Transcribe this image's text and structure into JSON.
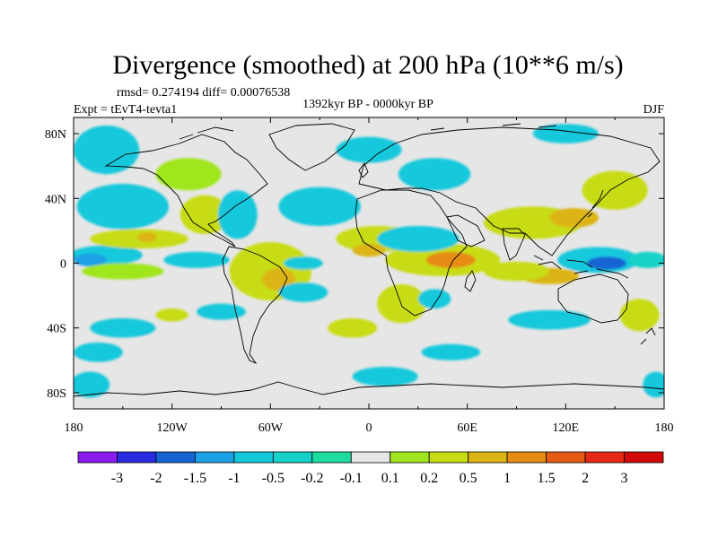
{
  "chart_data": {
    "type": "heatmap",
    "title": "Divergence (smoothed) at 200 hPa (10**6 m/s)",
    "stats": "rmsd= 0.274194 diff= 0.00076538",
    "period": "1392kyr BP - 0000kyr BP",
    "experiment": "Expt = tEvT4-tevta1",
    "season": "DJF",
    "x_range": [
      -180,
      180
    ],
    "y_range": [
      -90,
      90
    ],
    "x_ticks": [
      {
        "value": -180,
        "label": "180"
      },
      {
        "value": -120,
        "label": "120W"
      },
      {
        "value": -60,
        "label": "60W"
      },
      {
        "value": 0,
        "label": "0"
      },
      {
        "value": 60,
        "label": "60E"
      },
      {
        "value": 120,
        "label": "120E"
      },
      {
        "value": 180,
        "label": "180"
      }
    ],
    "y_ticks": [
      {
        "value": 80,
        "label": "80N"
      },
      {
        "value": 40,
        "label": "40N"
      },
      {
        "value": 0,
        "label": "0"
      },
      {
        "value": -40,
        "label": "40S"
      },
      {
        "value": -80,
        "label": "80S"
      }
    ],
    "colorbar": {
      "levels": [
        "-3",
        "-2",
        "-1.5",
        "-1",
        "-0.5",
        "-0.2",
        "-0.1",
        "0.1",
        "0.2",
        "0.5",
        "1",
        "1.5",
        "2",
        "3"
      ],
      "colors": [
        "#8a1cf0",
        "#2a2ae0",
        "#1464d2",
        "#1ea0e6",
        "#14c8dc",
        "#14d2c8",
        "#1edca0",
        "#e6e6e6",
        "#a0e61e",
        "#c8dc14",
        "#dcb414",
        "#e68c14",
        "#e65a14",
        "#e62814",
        "#d20a0a"
      ]
    },
    "regions": [
      {
        "class": 4,
        "lon": -160,
        "lat": 5,
        "rlon": 22,
        "rlat": 6
      },
      {
        "class": 3,
        "lon": -170,
        "lat": 2,
        "rlon": 10,
        "rlat": 4
      },
      {
        "class": 4,
        "lon": -105,
        "lat": 2,
        "rlon": 20,
        "rlat": 5
      },
      {
        "class": 9,
        "lon": -140,
        "lat": 15,
        "rlon": 30,
        "rlat": 6
      },
      {
        "class": 10,
        "lon": -135,
        "lat": 16,
        "rlon": 6,
        "rlat": 3
      },
      {
        "class": 8,
        "lon": -150,
        "lat": -5,
        "rlon": 25,
        "rlat": 5
      },
      {
        "class": 4,
        "lon": -150,
        "lat": 35,
        "rlon": 28,
        "rlat": 14
      },
      {
        "class": 4,
        "lon": -160,
        "lat": 70,
        "rlon": 20,
        "rlat": 15
      },
      {
        "class": 9,
        "lon": -100,
        "lat": 30,
        "rlon": 15,
        "rlat": 12
      },
      {
        "class": 4,
        "lon": -80,
        "lat": 30,
        "rlon": 12,
        "rlat": 15
      },
      {
        "class": 8,
        "lon": -110,
        "lat": 55,
        "rlon": 20,
        "rlat": 10
      },
      {
        "class": 9,
        "lon": -60,
        "lat": -5,
        "rlon": 25,
        "rlat": 18
      },
      {
        "class": 10,
        "lon": -55,
        "lat": -10,
        "rlon": 10,
        "rlat": 7
      },
      {
        "class": 9,
        "lon": -60,
        "lat": 5,
        "rlon": 18,
        "rlat": 6
      },
      {
        "class": 4,
        "lon": -40,
        "lat": -18,
        "rlon": 15,
        "rlat": 6
      },
      {
        "class": 4,
        "lon": -90,
        "lat": -30,
        "rlon": 15,
        "rlat": 5
      },
      {
        "class": 4,
        "lon": -150,
        "lat": -40,
        "rlon": 20,
        "rlat": 6
      },
      {
        "class": 9,
        "lon": -120,
        "lat": -32,
        "rlon": 10,
        "rlat": 4
      },
      {
        "class": 4,
        "lon": -165,
        "lat": -55,
        "rlon": 15,
        "rlat": 6
      },
      {
        "class": 4,
        "lon": -30,
        "lat": 35,
        "rlon": 25,
        "rlat": 12
      },
      {
        "class": 4,
        "lon": -40,
        "lat": 0,
        "rlon": 12,
        "rlat": 4
      },
      {
        "class": 9,
        "lon": 5,
        "lat": 15,
        "rlon": 25,
        "rlat": 8
      },
      {
        "class": 10,
        "lon": 0,
        "lat": 8,
        "rlon": 10,
        "rlat": 4
      },
      {
        "class": 9,
        "lon": 45,
        "lat": 2,
        "rlon": 35,
        "rlat": 10
      },
      {
        "class": 11,
        "lon": 50,
        "lat": 2,
        "rlon": 15,
        "rlat": 5
      },
      {
        "class": 4,
        "lon": 30,
        "lat": 15,
        "rlon": 25,
        "rlat": 8
      },
      {
        "class": 4,
        "lon": 40,
        "lat": 55,
        "rlon": 22,
        "rlat": 10
      },
      {
        "class": 4,
        "lon": 0,
        "lat": 70,
        "rlon": 20,
        "rlat": 8
      },
      {
        "class": 9,
        "lon": 100,
        "lat": 25,
        "rlon": 30,
        "rlat": 10
      },
      {
        "class": 10,
        "lon": 125,
        "lat": 28,
        "rlon": 15,
        "rlat": 6
      },
      {
        "class": 9,
        "lon": 150,
        "lat": 45,
        "rlon": 20,
        "rlat": 12
      },
      {
        "class": 4,
        "lon": 140,
        "lat": 2,
        "rlon": 25,
        "rlat": 8
      },
      {
        "class": 2,
        "lon": 145,
        "lat": 0,
        "rlon": 12,
        "rlat": 4
      },
      {
        "class": 5,
        "lon": 170,
        "lat": 2,
        "rlon": 12,
        "rlat": 5
      },
      {
        "class": 10,
        "lon": 110,
        "lat": -8,
        "rlon": 18,
        "rlat": 5
      },
      {
        "class": 9,
        "lon": 90,
        "lat": -5,
        "rlon": 20,
        "rlat": 6
      },
      {
        "class": 4,
        "lon": 110,
        "lat": -35,
        "rlon": 25,
        "rlat": 6
      },
      {
        "class": 9,
        "lon": 20,
        "lat": -25,
        "rlon": 15,
        "rlat": 12
      },
      {
        "class": 4,
        "lon": 40,
        "lat": -22,
        "rlon": 10,
        "rlat": 6
      },
      {
        "class": 9,
        "lon": -10,
        "lat": -40,
        "rlon": 15,
        "rlat": 6
      },
      {
        "class": 4,
        "lon": 50,
        "lat": -55,
        "rlon": 18,
        "rlat": 5
      },
      {
        "class": 4,
        "lon": 10,
        "lat": -70,
        "rlon": 20,
        "rlat": 6
      },
      {
        "class": 9,
        "lon": 165,
        "lat": -32,
        "rlon": 12,
        "rlat": 10
      },
      {
        "class": 4,
        "lon": 175,
        "lat": -75,
        "rlon": 8,
        "rlat": 8
      },
      {
        "class": 4,
        "lon": -170,
        "lat": -75,
        "rlon": 12,
        "rlat": 8
      },
      {
        "class": 4,
        "lon": 120,
        "lat": 80,
        "rlon": 20,
        "rlat": 6
      }
    ]
  }
}
